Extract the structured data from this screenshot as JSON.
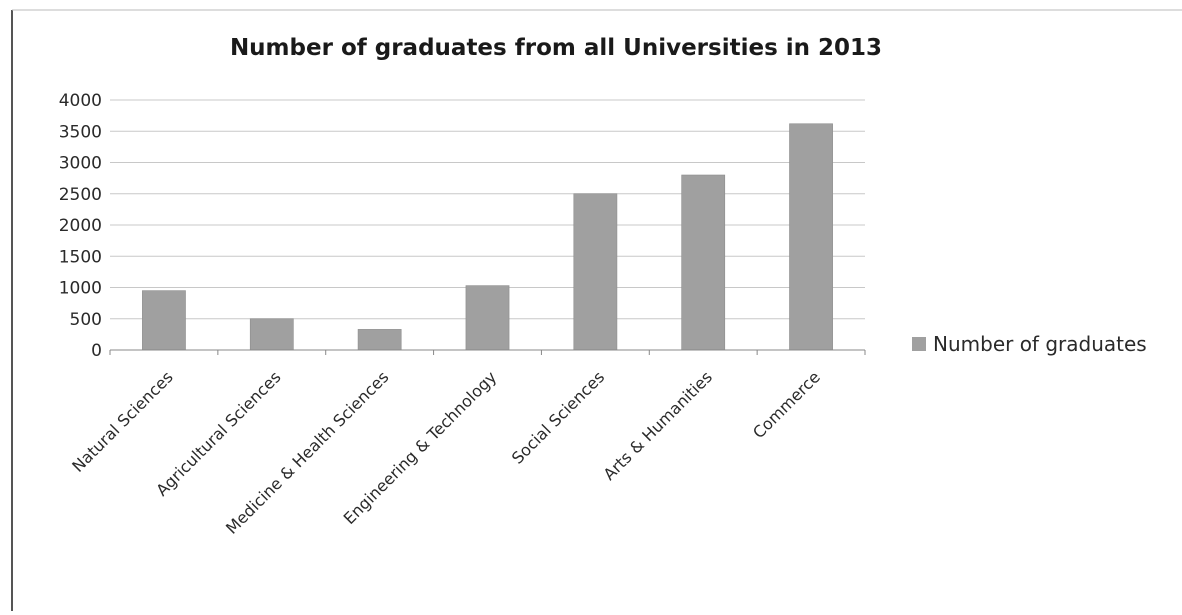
{
  "chart_data": {
    "type": "bar",
    "title": "Number of graduates from all Universities in 2013",
    "xlabel": "",
    "ylabel": "",
    "categories": [
      "Natural Sciences",
      "Agricultural Sciences",
      "Medicine & Health Sciences",
      "Engineering & Technology",
      "Social Sciences",
      "Arts & Humanities",
      "Commerce"
    ],
    "series": [
      {
        "name": "Number of graduates",
        "values": [
          950,
          500,
          330,
          1030,
          2500,
          2800,
          3620
        ]
      }
    ],
    "ylim": [
      0,
      4000
    ],
    "yticks": [
      0,
      500,
      1000,
      1500,
      2000,
      2500,
      3000,
      3500,
      4000
    ],
    "grid": true,
    "legend_position": "right",
    "bar_color": "#a0a0a0"
  }
}
